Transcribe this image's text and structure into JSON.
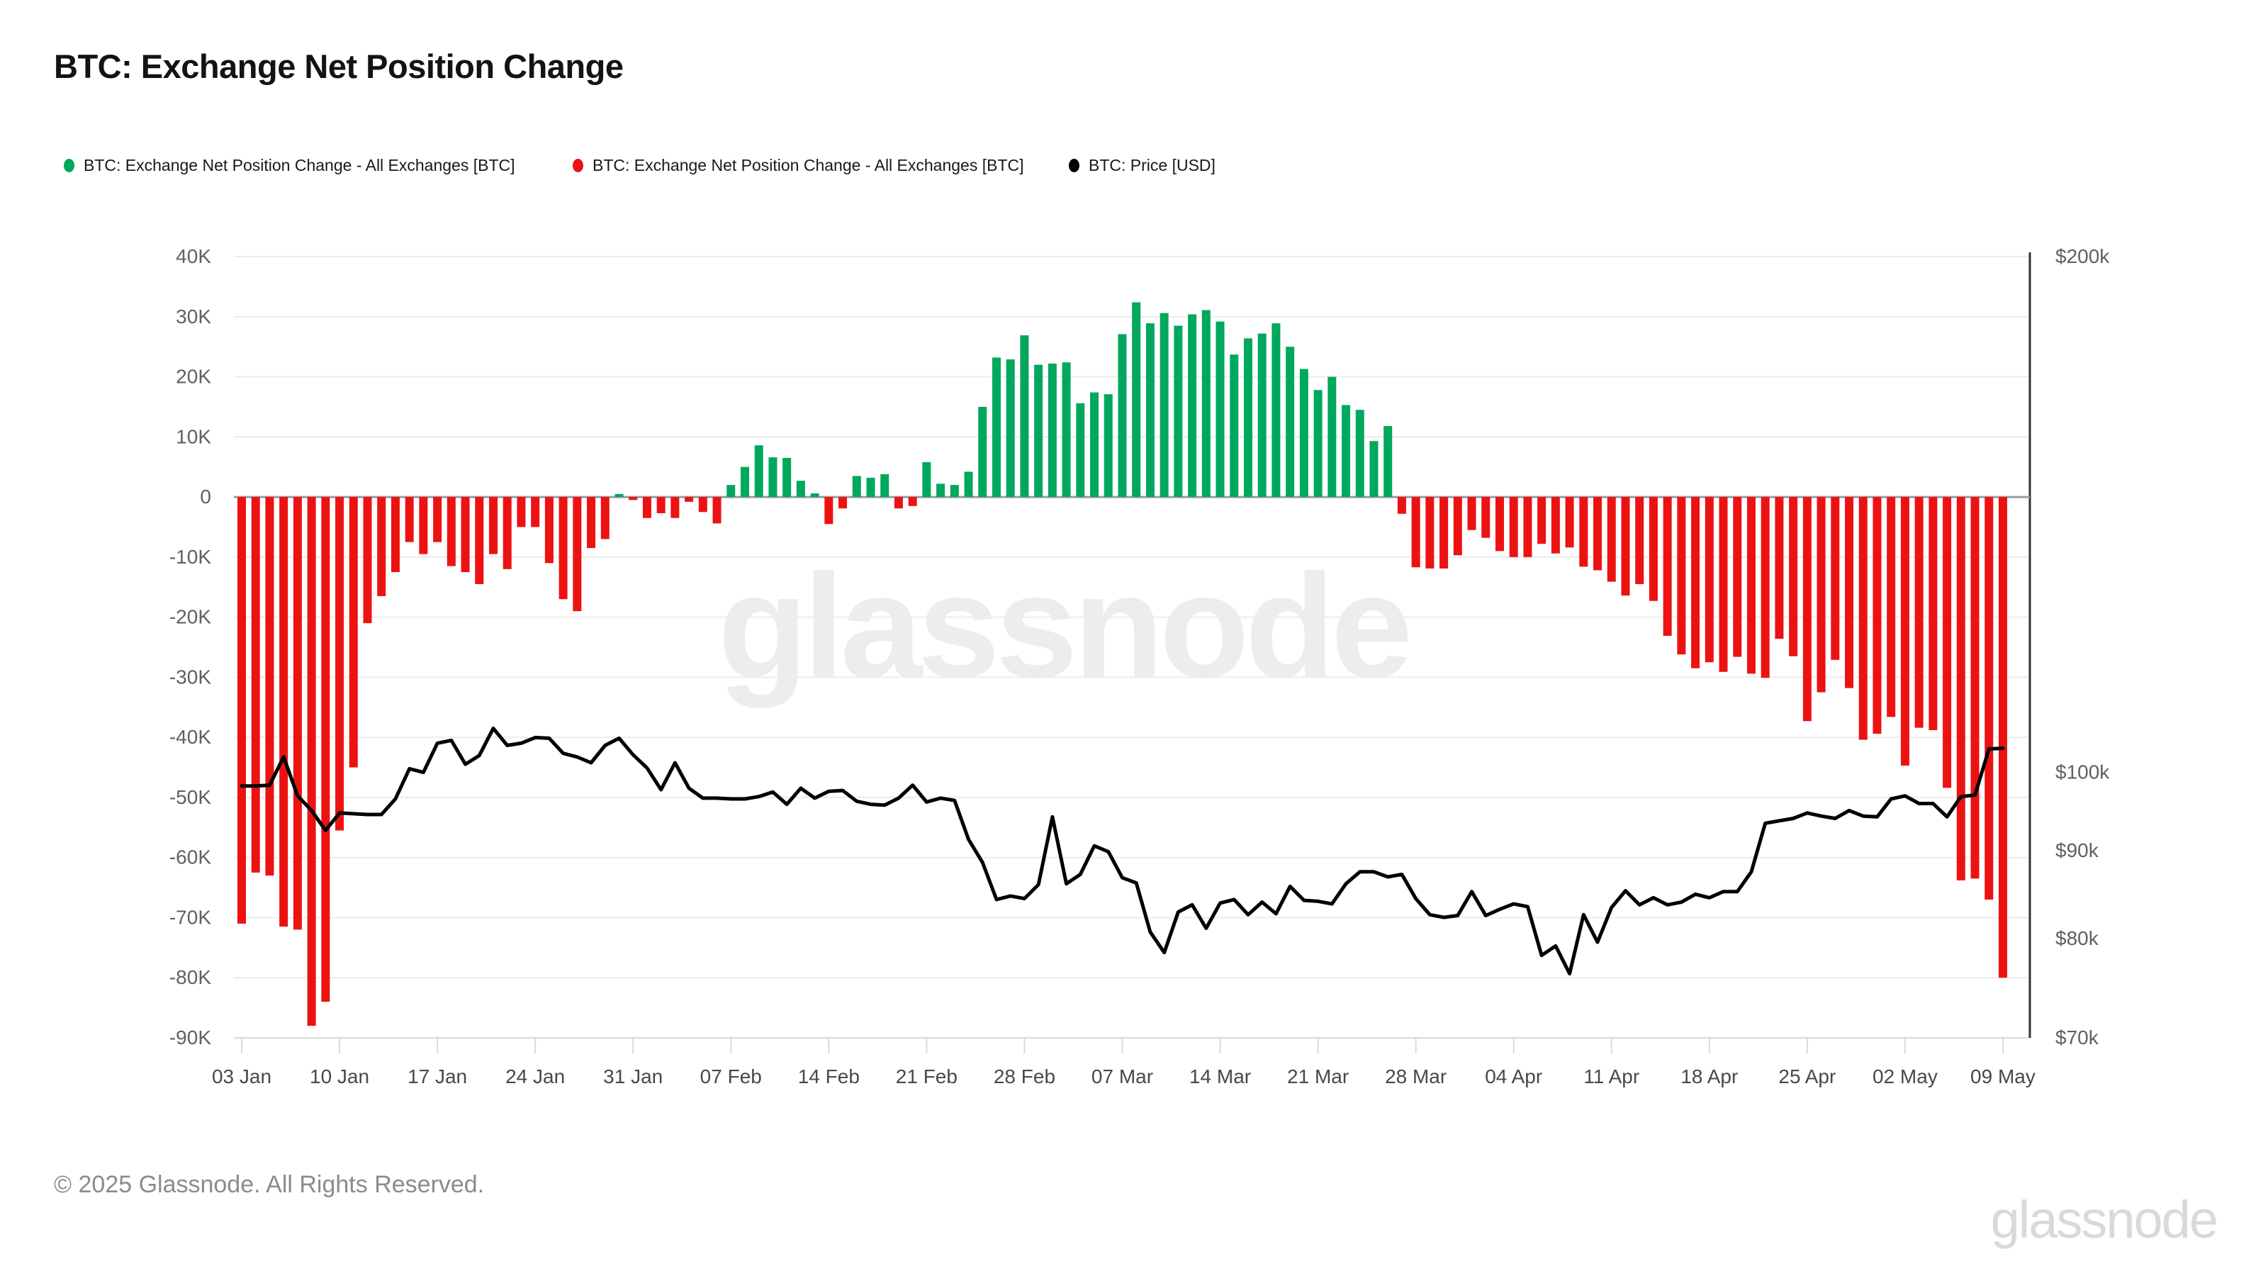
{
  "page": {
    "title": "BTC: Exchange Net Position Change"
  },
  "legend": [
    {
      "label": "BTC: Exchange Net Position Change - All Exchanges [BTC]",
      "color": "#00a85d"
    },
    {
      "label": "BTC: Exchange Net Position Change - All Exchanges [BTC]",
      "color": "#ed1212"
    },
    {
      "label": "BTC: Price [USD]",
      "color": "#000000"
    }
  ],
  "watermark": {
    "text": "glassnode"
  },
  "footer": {
    "copyright": "© 2025 Glassnode. All Rights Reserved."
  },
  "brand": {
    "logo_text": "glassnode"
  },
  "chart_data": {
    "type": "bar+line",
    "title": "BTC: Exchange Net Position Change",
    "grid": true,
    "legend_position": "top",
    "dates": [
      "2025-01-03",
      "2025-01-04",
      "2025-01-05",
      "2025-01-06",
      "2025-01-07",
      "2025-01-08",
      "2025-01-09",
      "2025-01-10",
      "2025-01-11",
      "2025-01-12",
      "2025-01-13",
      "2025-01-14",
      "2025-01-15",
      "2025-01-16",
      "2025-01-17",
      "2025-01-18",
      "2025-01-19",
      "2025-01-20",
      "2025-01-21",
      "2025-01-22",
      "2025-01-23",
      "2025-01-24",
      "2025-01-25",
      "2025-01-26",
      "2025-01-27",
      "2025-01-28",
      "2025-01-29",
      "2025-01-30",
      "2025-01-31",
      "2025-02-01",
      "2025-02-02",
      "2025-02-03",
      "2025-02-04",
      "2025-02-05",
      "2025-02-06",
      "2025-02-07",
      "2025-02-08",
      "2025-02-09",
      "2025-02-10",
      "2025-02-11",
      "2025-02-12",
      "2025-02-13",
      "2025-02-14",
      "2025-02-15",
      "2025-02-16",
      "2025-02-17",
      "2025-02-18",
      "2025-02-19",
      "2025-02-20",
      "2025-02-21",
      "2025-02-22",
      "2025-02-23",
      "2025-02-24",
      "2025-02-25",
      "2025-02-26",
      "2025-02-27",
      "2025-02-28",
      "2025-03-01",
      "2025-03-02",
      "2025-03-03",
      "2025-03-04",
      "2025-03-05",
      "2025-03-06",
      "2025-03-07",
      "2025-03-08",
      "2025-03-09",
      "2025-03-10",
      "2025-03-11",
      "2025-03-12",
      "2025-03-13",
      "2025-03-14",
      "2025-03-15",
      "2025-03-16",
      "2025-03-17",
      "2025-03-18",
      "2025-03-19",
      "2025-03-20",
      "2025-03-21",
      "2025-03-22",
      "2025-03-23",
      "2025-03-24",
      "2025-03-25",
      "2025-03-26",
      "2025-03-27",
      "2025-03-28",
      "2025-03-29",
      "2025-03-30",
      "2025-03-31",
      "2025-04-01",
      "2025-04-02",
      "2025-04-03",
      "2025-04-04",
      "2025-04-05",
      "2025-04-06",
      "2025-04-07",
      "2025-04-08",
      "2025-04-09",
      "2025-04-10",
      "2025-04-11",
      "2025-04-12",
      "2025-04-13",
      "2025-04-14",
      "2025-04-15",
      "2025-04-16",
      "2025-04-17",
      "2025-04-18",
      "2025-04-19",
      "2025-04-20",
      "2025-04-21",
      "2025-04-22",
      "2025-04-23",
      "2025-04-24",
      "2025-04-25",
      "2025-04-26",
      "2025-04-27",
      "2025-04-28",
      "2025-04-29",
      "2025-04-30",
      "2025-05-01",
      "2025-05-02",
      "2025-05-03",
      "2025-05-04",
      "2025-05-05",
      "2025-05-06",
      "2025-05-07",
      "2025-05-08",
      "2025-05-09"
    ],
    "series": [
      {
        "name": "BTC: Exchange Net Position Change - All Exchanges [BTC]",
        "type": "bar",
        "axis": "left",
        "unit": "BTC (thousands)",
        "positive_color": "#00a85d",
        "negative_color": "#ed1212",
        "values_k_btc": [
          -71,
          -62.5,
          -63,
          -71.5,
          -72,
          -88,
          -84,
          -55.5,
          -45,
          -21,
          -16.5,
          -12.5,
          -7.5,
          -9.5,
          -7.5,
          -11.5,
          -12.5,
          -14.5,
          -9.5,
          -12,
          -5,
          -5,
          -11,
          -17,
          -19,
          -8.5,
          -7,
          0.5,
          -0.5,
          -3.5,
          -2.7,
          -3.5,
          -0.8,
          -2.5,
          -4.4,
          2,
          5,
          8.6,
          6.6,
          6.5,
          2.7,
          0.6,
          -4.5,
          -1.9,
          3.5,
          3.2,
          3.8,
          -1.9,
          -1.5,
          5.8,
          2.2,
          2,
          4.2,
          15,
          23.2,
          22.9,
          26.9,
          22,
          22.2,
          22.4,
          15.6,
          17.4,
          17.1,
          27.1,
          32.4,
          28.9,
          30.6,
          28.5,
          30.4,
          31.1,
          29.2,
          23.7,
          26.4,
          27.2,
          28.9,
          25,
          21.3,
          17.8,
          20,
          15.3,
          14.5,
          9.3,
          11.8,
          -2.8,
          -11.7,
          -11.9,
          -11.9,
          -9.7,
          -5.5,
          -6.8,
          -9,
          -10,
          -10,
          -7.8,
          -9.4,
          -8.4,
          -11.6,
          -12.2,
          -14.1,
          -16.4,
          -14.5,
          -17.3,
          -23.1,
          -26.2,
          -28.5,
          -27.5,
          -29.1,
          -26.6,
          -29.4,
          -30.1,
          -23.6,
          -26.5,
          -37.3,
          -32.5,
          -27.1,
          -31.8,
          -40.4,
          -39.4,
          -36.6,
          -44.7,
          -38.4,
          -38.8,
          -48.4,
          -63.8,
          -63.5,
          -67,
          -80
        ]
      },
      {
        "name": "BTC: Price [USD]",
        "type": "line",
        "axis": "right",
        "unit": "USD (thousands)",
        "color": "#000000",
        "values_usd_k": [
          98.2,
          98.2,
          98.3,
          102.1,
          96.9,
          95.0,
          92.5,
          94.7,
          94.6,
          94.5,
          94.5,
          96.5,
          100.5,
          100.0,
          104.0,
          104.4,
          101.1,
          102.3,
          106.1,
          103.7,
          104.0,
          104.8,
          104.7,
          102.6,
          102.1,
          101.3,
          103.7,
          104.7,
          102.4,
          100.6,
          97.7,
          101.3,
          97.9,
          96.6,
          96.6,
          96.5,
          96.5,
          96.8,
          97.4,
          95.8,
          97.9,
          96.6,
          97.5,
          97.6,
          96.2,
          95.8,
          95.7,
          96.6,
          98.3,
          96.1,
          96.6,
          96.3,
          91.4,
          88.6,
          84.3,
          84.7,
          84.4,
          86.0,
          94.2,
          86.1,
          87.2,
          90.6,
          89.9,
          86.8,
          86.2,
          80.7,
          78.5,
          82.9,
          83.7,
          81.1,
          83.9,
          84.3,
          82.6,
          84.0,
          82.7,
          85.8,
          84.2,
          84.1,
          83.8,
          86.1,
          87.5,
          87.5,
          86.9,
          87.2,
          84.4,
          82.6,
          82.3,
          82.5,
          85.2,
          82.5,
          83.2,
          83.8,
          83.5,
          78.2,
          79.2,
          76.3,
          82.6,
          79.6,
          83.4,
          85.3,
          83.7,
          84.5,
          83.7,
          84.0,
          84.9,
          84.5,
          85.2,
          85.2,
          87.5,
          93.4,
          93.7,
          94.0,
          94.7,
          94.3,
          94.0,
          95.0,
          94.3,
          94.2,
          96.5,
          96.9,
          95.9,
          95.9,
          94.2,
          96.8,
          97.0,
          103.2,
          103.3
        ]
      }
    ],
    "left_axis": {
      "unit": "K BTC",
      "ticks": [
        {
          "label": "40K",
          "value": 40
        },
        {
          "label": "30K",
          "value": 30
        },
        {
          "label": "20K",
          "value": 20
        },
        {
          "label": "10K",
          "value": 10
        },
        {
          "label": "0",
          "value": 0
        },
        {
          "label": "-10K",
          "value": -10
        },
        {
          "label": "-20K",
          "value": -20
        },
        {
          "label": "-30K",
          "value": -30
        },
        {
          "label": "-40K",
          "value": -40
        },
        {
          "label": "-50K",
          "value": -50
        },
        {
          "label": "-60K",
          "value": -60
        },
        {
          "label": "-70K",
          "value": -70
        },
        {
          "label": "-80K",
          "value": -80
        },
        {
          "label": "-90K",
          "value": -90
        }
      ]
    },
    "right_axis": {
      "scale": "log",
      "unit": "USD",
      "ticks": [
        {
          "label": "$200k",
          "value": 200
        },
        {
          "label": "$100k",
          "value": 100
        },
        {
          "label": "$90k",
          "value": 90
        },
        {
          "label": "$80k",
          "value": 80
        },
        {
          "label": "$70k",
          "value": 70
        }
      ]
    },
    "x_axis": {
      "ticks": [
        {
          "label": "03 Jan",
          "index": 0
        },
        {
          "label": "10 Jan",
          "index": 7
        },
        {
          "label": "17 Jan",
          "index": 14
        },
        {
          "label": "24 Jan",
          "index": 21
        },
        {
          "label": "31 Jan",
          "index": 28
        },
        {
          "label": "07 Feb",
          "index": 35
        },
        {
          "label": "14 Feb",
          "index": 42
        },
        {
          "label": "21 Feb",
          "index": 49
        },
        {
          "label": "28 Feb",
          "index": 56
        },
        {
          "label": "07 Mar",
          "index": 63
        },
        {
          "label": "14 Mar",
          "index": 70
        },
        {
          "label": "21 Mar",
          "index": 77
        },
        {
          "label": "28 Mar",
          "index": 84
        },
        {
          "label": "04 Apr",
          "index": 91
        },
        {
          "label": "11 Apr",
          "index": 98
        },
        {
          "label": "18 Apr",
          "index": 105
        },
        {
          "label": "25 Apr",
          "index": 112
        },
        {
          "label": "02 May",
          "index": 119
        },
        {
          "label": "09 May",
          "index": 126
        }
      ]
    }
  }
}
